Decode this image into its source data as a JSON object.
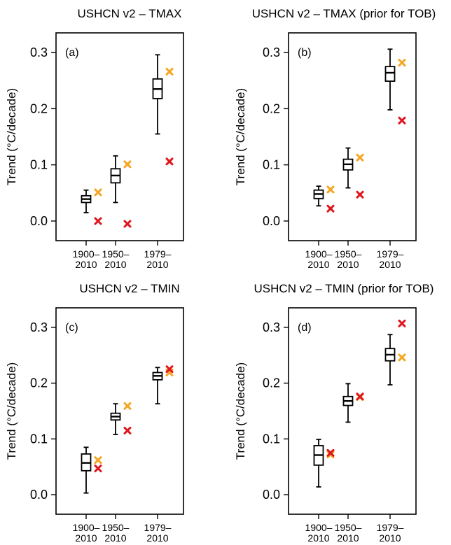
{
  "chart_data": [
    {
      "type": "box",
      "panel": "(a)",
      "title": "USHCN v2 – TMAX",
      "ylabel": "Trend (°C/decade)",
      "ylim": [
        -0.035,
        0.335
      ],
      "yticks": [
        "0.0",
        "0.1",
        "0.2",
        "0.3"
      ],
      "categories": [
        [
          "1900–",
          "2010"
        ],
        [
          "1950–",
          "2010"
        ],
        [
          "1979–",
          "2010"
        ]
      ],
      "boxes": [
        {
          "whisker_low": 0.015,
          "q1": 0.033,
          "median": 0.039,
          "q3": 0.045,
          "whisker_high": 0.055
        },
        {
          "whisker_low": 0.033,
          "q1": 0.068,
          "median": 0.081,
          "q3": 0.093,
          "whisker_high": 0.116
        },
        {
          "whisker_low": 0.155,
          "q1": 0.218,
          "median": 0.235,
          "q3": 0.253,
          "whisker_high": 0.296
        }
      ],
      "markers": [
        {
          "color": "#f5a623",
          "values": [
            0.051,
            0.101,
            0.266
          ]
        },
        {
          "color": "#e0161d",
          "values": [
            0.0,
            -0.005,
            0.106
          ]
        }
      ]
    },
    {
      "type": "box",
      "panel": "(b)",
      "title": "USHCN v2 – TMAX (prior for TOB)",
      "ylabel": "Trend (°C/decade)",
      "ylim": [
        -0.035,
        0.335
      ],
      "yticks": [
        "0.0",
        "0.1",
        "0.2",
        "0.3"
      ],
      "categories": [
        [
          "1900–",
          "2010"
        ],
        [
          "1950–",
          "2010"
        ],
        [
          "1979–",
          "2010"
        ]
      ],
      "boxes": [
        {
          "whisker_low": 0.027,
          "q1": 0.04,
          "median": 0.048,
          "q3": 0.055,
          "whisker_high": 0.062
        },
        {
          "whisker_low": 0.059,
          "q1": 0.091,
          "median": 0.101,
          "q3": 0.11,
          "whisker_high": 0.13
        },
        {
          "whisker_low": 0.198,
          "q1": 0.249,
          "median": 0.264,
          "q3": 0.275,
          "whisker_high": 0.306
        }
      ],
      "markers": [
        {
          "color": "#f5a623",
          "values": [
            0.056,
            0.113,
            0.282
          ]
        },
        {
          "color": "#e0161d",
          "values": [
            0.022,
            0.047,
            0.179
          ]
        }
      ]
    },
    {
      "type": "box",
      "panel": "(c)",
      "title": "USHCN v2 – TMIN",
      "ylabel": "Trend (°C/decade)",
      "ylim": [
        -0.035,
        0.335
      ],
      "yticks": [
        "0.0",
        "0.1",
        "0.2",
        "0.3"
      ],
      "categories": [
        [
          "1900–",
          "2010"
        ],
        [
          "1950–",
          "2010"
        ],
        [
          "1979–",
          "2010"
        ]
      ],
      "boxes": [
        {
          "whisker_low": 0.003,
          "q1": 0.043,
          "median": 0.057,
          "q3": 0.073,
          "whisker_high": 0.085
        },
        {
          "whisker_low": 0.108,
          "q1": 0.134,
          "median": 0.14,
          "q3": 0.146,
          "whisker_high": 0.163
        },
        {
          "whisker_low": 0.163,
          "q1": 0.206,
          "median": 0.213,
          "q3": 0.219,
          "whisker_high": 0.228
        }
      ],
      "markers": [
        {
          "color": "#f5a623",
          "values": [
            0.062,
            0.159,
            0.219
          ]
        },
        {
          "color": "#e0161d",
          "values": [
            0.047,
            0.115,
            0.225
          ]
        }
      ]
    },
    {
      "type": "box",
      "panel": "(d)",
      "title": "USHCN v2 – TMIN (prior for TOB)",
      "ylabel": "Trend (°C/decade)",
      "ylim": [
        -0.035,
        0.335
      ],
      "yticks": [
        "0.0",
        "0.1",
        "0.2",
        "0.3"
      ],
      "categories": [
        [
          "1900–",
          "2010"
        ],
        [
          "1950–",
          "2010"
        ],
        [
          "1979–",
          "2010"
        ]
      ],
      "boxes": [
        {
          "whisker_low": 0.014,
          "q1": 0.053,
          "median": 0.071,
          "q3": 0.088,
          "whisker_high": 0.099
        },
        {
          "whisker_low": 0.13,
          "q1": 0.16,
          "median": 0.168,
          "q3": 0.176,
          "whisker_high": 0.199
        },
        {
          "whisker_low": 0.197,
          "q1": 0.24,
          "median": 0.251,
          "q3": 0.262,
          "whisker_high": 0.287
        }
      ],
      "markers": [
        {
          "color": "#f5a623",
          "values": [
            0.072,
            0.175,
            0.246
          ]
        },
        {
          "color": "#e0161d",
          "values": [
            0.075,
            0.176,
            0.307
          ]
        }
      ]
    }
  ]
}
